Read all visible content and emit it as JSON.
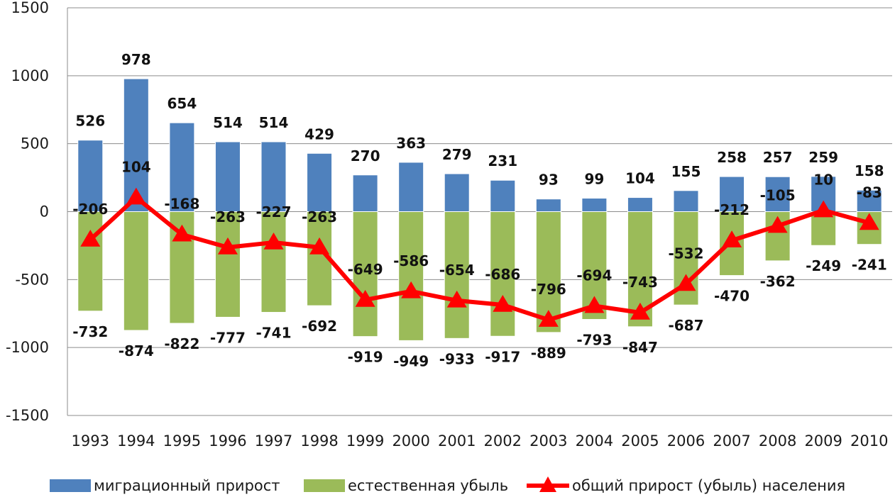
{
  "chart_data": {
    "type": "bar",
    "categories": [
      "1993",
      "1994",
      "1995",
      "1996",
      "1997",
      "1998",
      "1999",
      "2000",
      "2001",
      "2002",
      "2003",
      "2004",
      "2005",
      "2006",
      "2007",
      "2008",
      "2009",
      "2010"
    ],
    "series": [
      {
        "name": "миграционный прирост",
        "type": "bar",
        "color": "#4F81BD",
        "values": [
          526,
          978,
          654,
          514,
          514,
          429,
          270,
          363,
          279,
          231,
          93,
          99,
          104,
          155,
          258,
          257,
          259,
          158
        ]
      },
      {
        "name": "естественная убыль",
        "type": "bar",
        "color": "#9BBB59",
        "values": [
          -732,
          -874,
          -822,
          -777,
          -741,
          -692,
          -919,
          -949,
          -933,
          -917,
          -889,
          -793,
          -847,
          -687,
          -470,
          -362,
          -249,
          -241
        ]
      },
      {
        "name": "общий прирост (убыль) населения",
        "type": "line",
        "color": "#FF0000",
        "values": [
          -206,
          104,
          -168,
          -263,
          -227,
          -263,
          -649,
          -586,
          -654,
          -686,
          -796,
          -694,
          -743,
          -532,
          -212,
          -105,
          10,
          -83
        ]
      }
    ],
    "yticks": [
      "1500",
      "1000",
      "500",
      "0",
      "-500",
      "-1000",
      "-1500"
    ],
    "ylim": [
      -1500,
      1500
    ],
    "grid": true,
    "legend_position": "bottom",
    "stacked": true
  }
}
